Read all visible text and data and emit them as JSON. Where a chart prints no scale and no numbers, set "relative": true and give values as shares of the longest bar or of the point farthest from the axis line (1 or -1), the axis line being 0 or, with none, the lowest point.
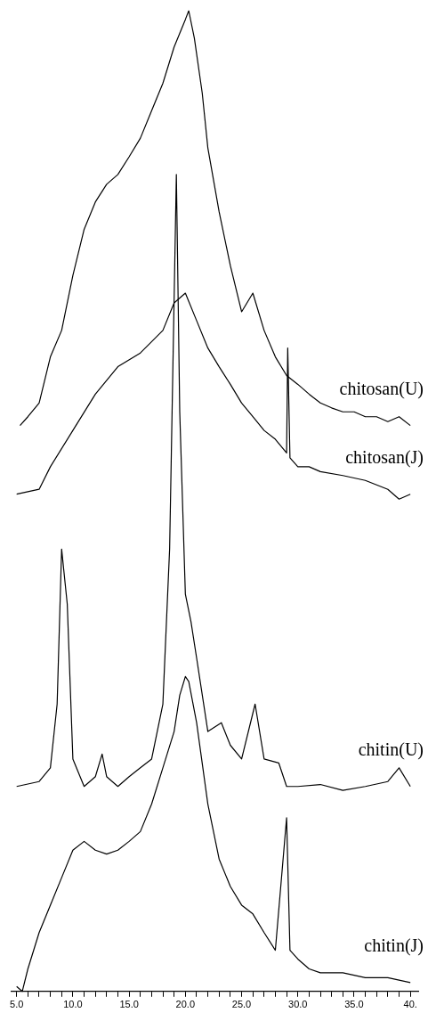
{
  "chart_data": {
    "type": "line",
    "relative": true,
    "tick_labels": "x",
    "grid": false,
    "legend": false,
    "marker": "none",
    "line_style": "solid",
    "xlim": [
      4.5,
      40.7
    ],
    "xticks": [
      {
        "value": 5,
        "label": "5.0"
      },
      {
        "value": 6,
        "label": null
      },
      {
        "value": 7,
        "label": null
      },
      {
        "value": 8,
        "label": null
      },
      {
        "value": 9,
        "label": null
      },
      {
        "value": 10,
        "label": "10.0"
      },
      {
        "value": 11,
        "label": null
      },
      {
        "value": 12,
        "label": null
      },
      {
        "value": 13,
        "label": null
      },
      {
        "value": 14,
        "label": null
      },
      {
        "value": 15,
        "label": "15.0"
      },
      {
        "value": 16,
        "label": null
      },
      {
        "value": 17,
        "label": null
      },
      {
        "value": 18,
        "label": null
      },
      {
        "value": 19,
        "label": null
      },
      {
        "value": 20,
        "label": "20.0"
      },
      {
        "value": 21,
        "label": null
      },
      {
        "value": 22,
        "label": null
      },
      {
        "value": 23,
        "label": null
      },
      {
        "value": 24,
        "label": null
      },
      {
        "value": 25,
        "label": "25.0"
      },
      {
        "value": 26,
        "label": null
      },
      {
        "value": 27,
        "label": null
      },
      {
        "value": 28,
        "label": null
      },
      {
        "value": 29,
        "label": null
      },
      {
        "value": 30,
        "label": "30.0"
      },
      {
        "value": 31,
        "label": null
      },
      {
        "value": 32,
        "label": null
      },
      {
        "value": 33,
        "label": null
      },
      {
        "value": 34,
        "label": null
      },
      {
        "value": 35,
        "label": "35.0"
      },
      {
        "value": 36,
        "label": null
      },
      {
        "value": 37,
        "label": null
      },
      {
        "value": 38,
        "label": null
      },
      {
        "value": 39,
        "label": null
      },
      {
        "value": 40,
        "label": "40."
      }
    ],
    "series": [
      {
        "name": "chitosan(U)",
        "color": "#000000",
        "x": [
          5.3,
          6,
          7,
          8,
          9,
          10,
          11,
          12,
          13,
          14,
          15,
          16,
          17,
          18,
          19,
          20,
          20.3,
          20.8,
          21.5,
          22,
          23,
          24,
          25,
          26,
          27,
          28,
          29,
          30,
          31,
          32,
          33,
          34,
          35,
          36,
          37,
          38,
          39,
          40
        ],
        "values": [
          0.577,
          0.586,
          0.6,
          0.647,
          0.674,
          0.73,
          0.777,
          0.805,
          0.823,
          0.833,
          0.851,
          0.87,
          0.898,
          0.926,
          0.963,
          0.991,
          1.0,
          0.972,
          0.916,
          0.86,
          0.795,
          0.74,
          0.693,
          0.712,
          0.674,
          0.647,
          0.628,
          0.619,
          0.609,
          0.6,
          0.595,
          0.591,
          0.591,
          0.586,
          0.586,
          0.581,
          0.586,
          0.577
        ]
      },
      {
        "name": "chitosan(J)",
        "color": "#000000",
        "x": [
          5,
          7,
          8,
          10,
          12,
          14,
          16,
          18,
          19,
          20,
          21,
          22,
          23,
          24,
          25,
          26,
          27,
          28,
          29,
          29.1,
          29.3,
          30,
          31,
          32,
          34,
          36,
          38,
          39,
          40
        ],
        "values": [
          0.507,
          0.512,
          0.535,
          0.572,
          0.609,
          0.637,
          0.651,
          0.674,
          0.702,
          0.712,
          0.684,
          0.656,
          0.637,
          0.619,
          0.6,
          0.586,
          0.572,
          0.563,
          0.549,
          0.656,
          0.544,
          0.535,
          0.535,
          0.53,
          0.526,
          0.521,
          0.512,
          0.502,
          0.507
        ]
      },
      {
        "name": "chitin(U)",
        "color": "#000000",
        "x": [
          5,
          7,
          8,
          8.6,
          9,
          9.5,
          10,
          11,
          12,
          12.6,
          13,
          14,
          15,
          16,
          17,
          18,
          18.6,
          19.2,
          19.5,
          20,
          20.5,
          21,
          22,
          23.2,
          24,
          25,
          26.2,
          27,
          28.3,
          29,
          30,
          32,
          34,
          36,
          38,
          39,
          40
        ],
        "values": [
          0.209,
          0.214,
          0.228,
          0.293,
          0.451,
          0.395,
          0.237,
          0.209,
          0.219,
          0.242,
          0.219,
          0.209,
          0.219,
          0.228,
          0.237,
          0.293,
          0.451,
          0.833,
          0.591,
          0.405,
          0.377,
          0.34,
          0.265,
          0.274,
          0.251,
          0.237,
          0.293,
          0.237,
          0.233,
          0.209,
          0.209,
          0.211,
          0.205,
          0.209,
          0.214,
          0.228,
          0.209
        ]
      },
      {
        "name": "chitin(J)",
        "color": "#000000",
        "x": [
          5,
          5.5,
          6,
          7,
          8,
          9,
          10,
          11,
          12,
          13,
          14,
          15,
          16,
          17,
          18,
          19,
          19.5,
          20,
          20.3,
          21,
          22,
          23,
          24,
          25,
          26,
          27,
          28,
          29,
          29.3,
          30,
          31,
          32,
          34,
          36,
          38,
          40
        ],
        "values": [
          0.005,
          0.0,
          0.023,
          0.06,
          0.088,
          0.116,
          0.144,
          0.153,
          0.144,
          0.14,
          0.144,
          0.153,
          0.163,
          0.191,
          0.228,
          0.265,
          0.302,
          0.321,
          0.316,
          0.274,
          0.191,
          0.135,
          0.107,
          0.088,
          0.079,
          0.06,
          0.042,
          0.177,
          0.042,
          0.033,
          0.023,
          0.019,
          0.019,
          0.014,
          0.014,
          0.009
        ]
      }
    ]
  }
}
